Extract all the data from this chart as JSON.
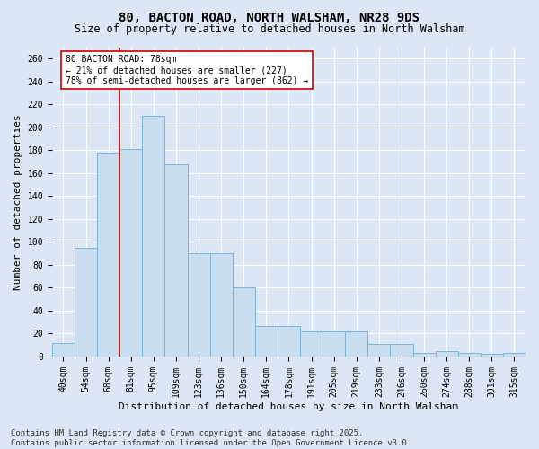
{
  "title": "80, BACTON ROAD, NORTH WALSHAM, NR28 9DS",
  "subtitle": "Size of property relative to detached houses in North Walsham",
  "xlabel": "Distribution of detached houses by size in North Walsham",
  "ylabel": "Number of detached properties",
  "categories": [
    "40sqm",
    "54sqm",
    "68sqm",
    "81sqm",
    "95sqm",
    "109sqm",
    "123sqm",
    "136sqm",
    "150sqm",
    "164sqm",
    "178sqm",
    "191sqm",
    "205sqm",
    "219sqm",
    "233sqm",
    "246sqm",
    "260sqm",
    "274sqm",
    "288sqm",
    "301sqm",
    "315sqm"
  ],
  "values": [
    12,
    95,
    178,
    181,
    210,
    168,
    90,
    90,
    60,
    27,
    27,
    22,
    22,
    22,
    11,
    11,
    3,
    5,
    3,
    2,
    3
  ],
  "bar_color": "#c9ddf0",
  "bar_edge_color": "#7ab4d8",
  "vline_x": 2.5,
  "vline_color": "#cc0000",
  "annotation_text": "80 BACTON ROAD: 78sqm\n← 21% of detached houses are smaller (227)\n78% of semi-detached houses are larger (862) →",
  "annotation_box_color": "#ffffff",
  "annotation_box_edge": "#cc0000",
  "ylim": [
    0,
    270
  ],
  "yticks": [
    0,
    20,
    40,
    60,
    80,
    100,
    120,
    140,
    160,
    180,
    200,
    220,
    240,
    260
  ],
  "background_color": "#dce6f5",
  "plot_bg_color": "#dce6f5",
  "footer_text": "Contains HM Land Registry data © Crown copyright and database right 2025.\nContains public sector information licensed under the Open Government Licence v3.0.",
  "title_fontsize": 10,
  "subtitle_fontsize": 8.5,
  "label_fontsize": 8,
  "tick_fontsize": 7,
  "annot_fontsize": 7,
  "footer_fontsize": 6.5
}
